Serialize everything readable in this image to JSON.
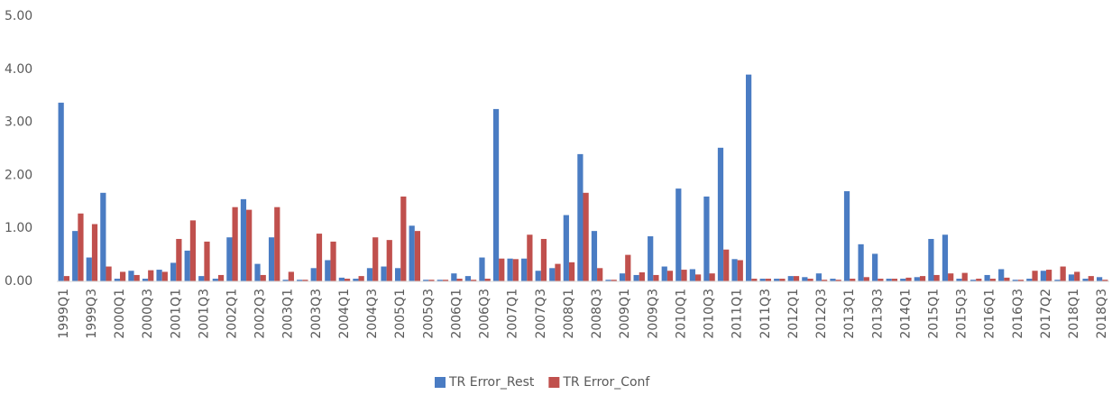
{
  "chart_data": {
    "type": "bar",
    "categories": [
      "1999Q1",
      null,
      "1999Q3",
      null,
      "2000Q1",
      null,
      "2000Q3",
      null,
      "2001Q1",
      null,
      "2001Q3",
      null,
      "2002Q1",
      null,
      "2002Q3",
      null,
      "2003Q1",
      null,
      "2003Q3",
      null,
      "2004Q1",
      null,
      "2004Q3",
      null,
      "2005Q1",
      null,
      "2005Q3",
      null,
      "2006Q1",
      null,
      "2006Q3",
      null,
      "2007Q1",
      null,
      "2007Q3",
      null,
      "2008Q1",
      null,
      "2008Q3",
      null,
      "2009Q1",
      null,
      "2009Q3",
      null,
      "2010Q1",
      null,
      "2010Q3",
      null,
      "2011Q1",
      null,
      "2011Q3",
      null,
      "2012Q1",
      null,
      "2012Q3",
      null,
      "2013Q1",
      null,
      "2013Q3",
      null,
      "2014Q1",
      null,
      "2015Q1",
      null,
      "2015Q3",
      null,
      "2016Q1",
      null,
      "2016Q3",
      null,
      "2017Q2",
      null,
      "2018Q1",
      null,
      "2018Q3"
    ],
    "series": [
      {
        "name": "TR Error_Rest",
        "color": "#4a7cc3",
        "values": [
          3.37,
          0.95,
          0.45,
          1.67,
          0.05,
          0.2,
          0.05,
          0.22,
          0.35,
          0.58,
          0.1,
          0.05,
          0.83,
          1.55,
          0.33,
          0.83,
          0.03,
          0.03,
          0.25,
          0.4,
          0.07,
          0.05,
          0.25,
          0.28,
          0.25,
          1.05,
          0.03,
          0.03,
          0.15,
          0.1,
          0.45,
          3.25,
          0.43,
          0.43,
          0.2,
          0.25,
          1.25,
          2.4,
          0.95,
          0.03,
          0.15,
          0.12,
          0.85,
          0.28,
          1.75,
          0.23,
          1.6,
          2.52,
          0.42,
          3.9,
          0.05,
          0.05,
          0.1,
          0.08,
          0.15,
          0.05,
          1.7,
          0.7,
          0.52,
          0.05,
          0.05,
          0.08,
          0.8,
          0.88,
          0.05,
          0.03,
          0.12,
          0.23,
          0.03,
          0.05,
          0.2,
          0.03,
          0.13,
          0.05,
          0.08
        ]
      },
      {
        "name": "TR Error_Conf",
        "color": "#c0504d",
        "values": [
          0.1,
          1.28,
          1.08,
          0.28,
          0.18,
          0.12,
          0.21,
          0.18,
          0.8,
          1.15,
          0.75,
          0.12,
          1.4,
          1.35,
          0.12,
          1.4,
          0.18,
          0.03,
          0.9,
          0.75,
          0.05,
          0.1,
          0.83,
          0.78,
          1.6,
          0.95,
          0.03,
          0.03,
          0.05,
          0.03,
          0.05,
          0.43,
          0.42,
          0.88,
          0.8,
          0.33,
          0.36,
          1.67,
          0.25,
          0.03,
          0.5,
          0.17,
          0.12,
          0.2,
          0.22,
          0.13,
          0.15,
          0.6,
          0.4,
          0.05,
          0.05,
          0.05,
          0.1,
          0.05,
          0.03,
          0.03,
          0.05,
          0.08,
          0.05,
          0.05,
          0.07,
          0.1,
          0.12,
          0.15,
          0.16,
          0.05,
          0.05,
          0.07,
          0.03,
          0.2,
          0.22,
          0.28,
          0.18,
          0.1,
          0.03
        ]
      }
    ],
    "ylim": [
      0,
      5
    ],
    "yticks": [
      {
        "value": 0,
        "label": "0.00"
      },
      {
        "value": 1,
        "label": "1.00"
      },
      {
        "value": 2,
        "label": "2.00"
      },
      {
        "value": 3,
        "label": "3.00"
      },
      {
        "value": 4,
        "label": "4.00"
      },
      {
        "value": 5,
        "label": "5.00"
      }
    ],
    "grid": false,
    "legend": "bottom"
  }
}
